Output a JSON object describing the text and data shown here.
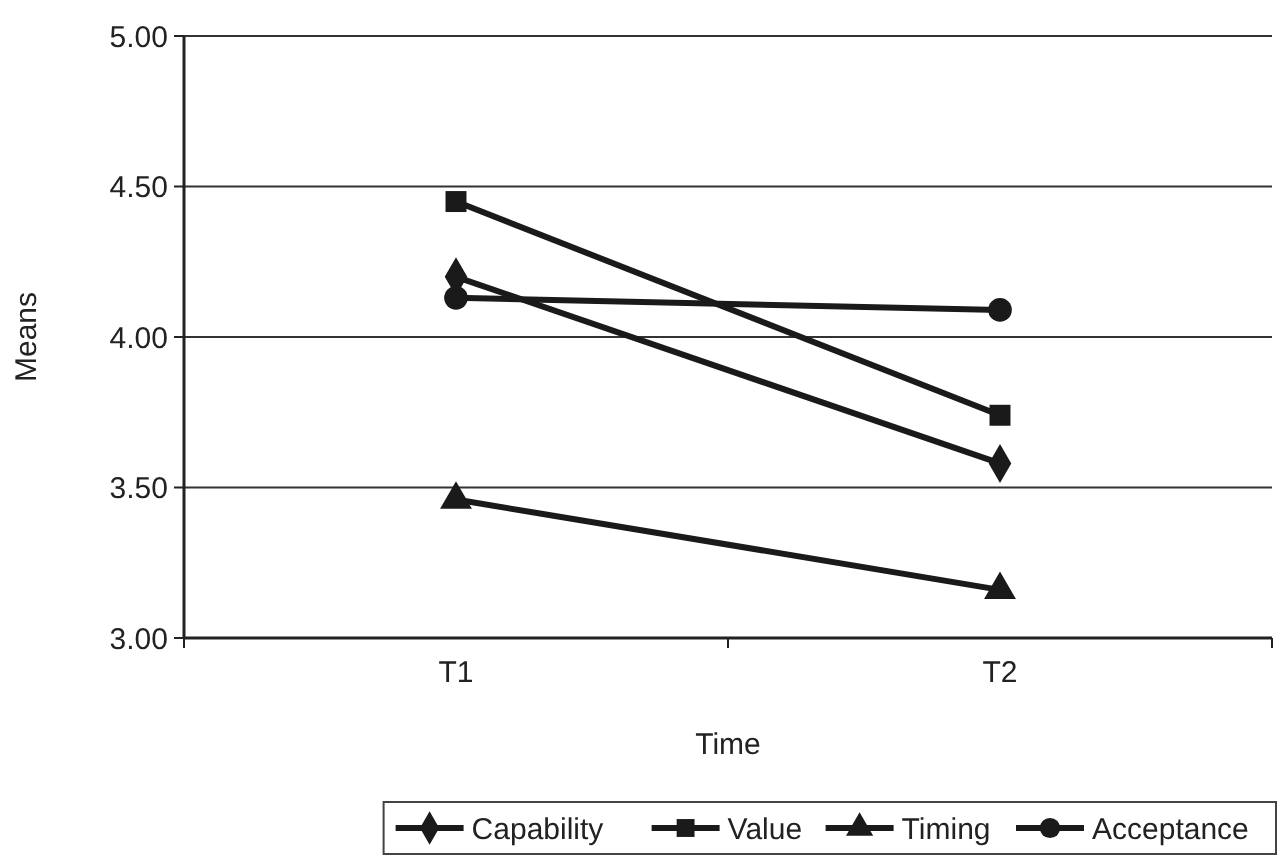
{
  "chart_data": {
    "type": "line",
    "xlabel": "Time",
    "ylabel": "Means",
    "categories": [
      "T1",
      "T2"
    ],
    "series": [
      {
        "name": "Capability",
        "color": "#1a1a1a",
        "marker": "diamond",
        "values": [
          4.2,
          3.58
        ]
      },
      {
        "name": "Value",
        "color": "#1a1a1a",
        "marker": "square",
        "values": [
          4.45,
          3.74
        ]
      },
      {
        "name": "Timing",
        "color": "#1a1a1a",
        "marker": "triangle",
        "values": [
          3.46,
          3.16
        ]
      },
      {
        "name": "Acceptance",
        "color": "#1a1a1a",
        "marker": "circle",
        "values": [
          4.13,
          4.09
        ]
      }
    ],
    "ylim": [
      3,
      5
    ],
    "yticks": [
      {
        "value": 3,
        "label": "3.00"
      },
      {
        "value": 3.5,
        "label": "3.50"
      },
      {
        "value": 4,
        "label": "4.00"
      },
      {
        "value": 4.5,
        "label": "4.50"
      },
      {
        "value": 5,
        "label": "5.00"
      }
    ],
    "grid": "y",
    "legend": "bottom",
    "line_style": "solid"
  }
}
